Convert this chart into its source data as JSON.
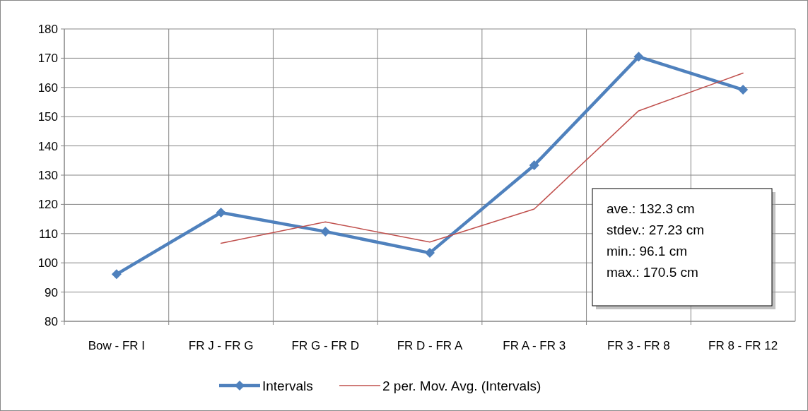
{
  "chart_data": {
    "type": "line",
    "categories": [
      "Bow - FR I",
      "FR J - FR G",
      "FR G - FR D",
      "FR D - FR A",
      "FR A - FR 3",
      "FR 3 - FR 8",
      "FR 8 - FR 12"
    ],
    "series": [
      {
        "name": "Intervals",
        "color": "#4f81bd",
        "marker": "diamond",
        "values": [
          96.1,
          117.2,
          110.7,
          103.4,
          133.4,
          170.5,
          159.2
        ]
      },
      {
        "name": "2 per. Mov. Avg. (Intervals)",
        "color": "#c0504d",
        "marker": "none",
        "values": [
          null,
          106.7,
          114.0,
          107.1,
          118.4,
          152.0,
          164.9
        ]
      }
    ],
    "ylim": [
      80,
      180
    ],
    "yticks": [
      80,
      90,
      100,
      110,
      120,
      130,
      140,
      150,
      160,
      170,
      180
    ],
    "grid": true,
    "legend": "bottom",
    "annotations": [
      "ave.: 132.3 cm",
      "stdev.: 27.23 cm",
      "min.:  96.1 cm",
      "max.: 170.5 cm"
    ]
  }
}
